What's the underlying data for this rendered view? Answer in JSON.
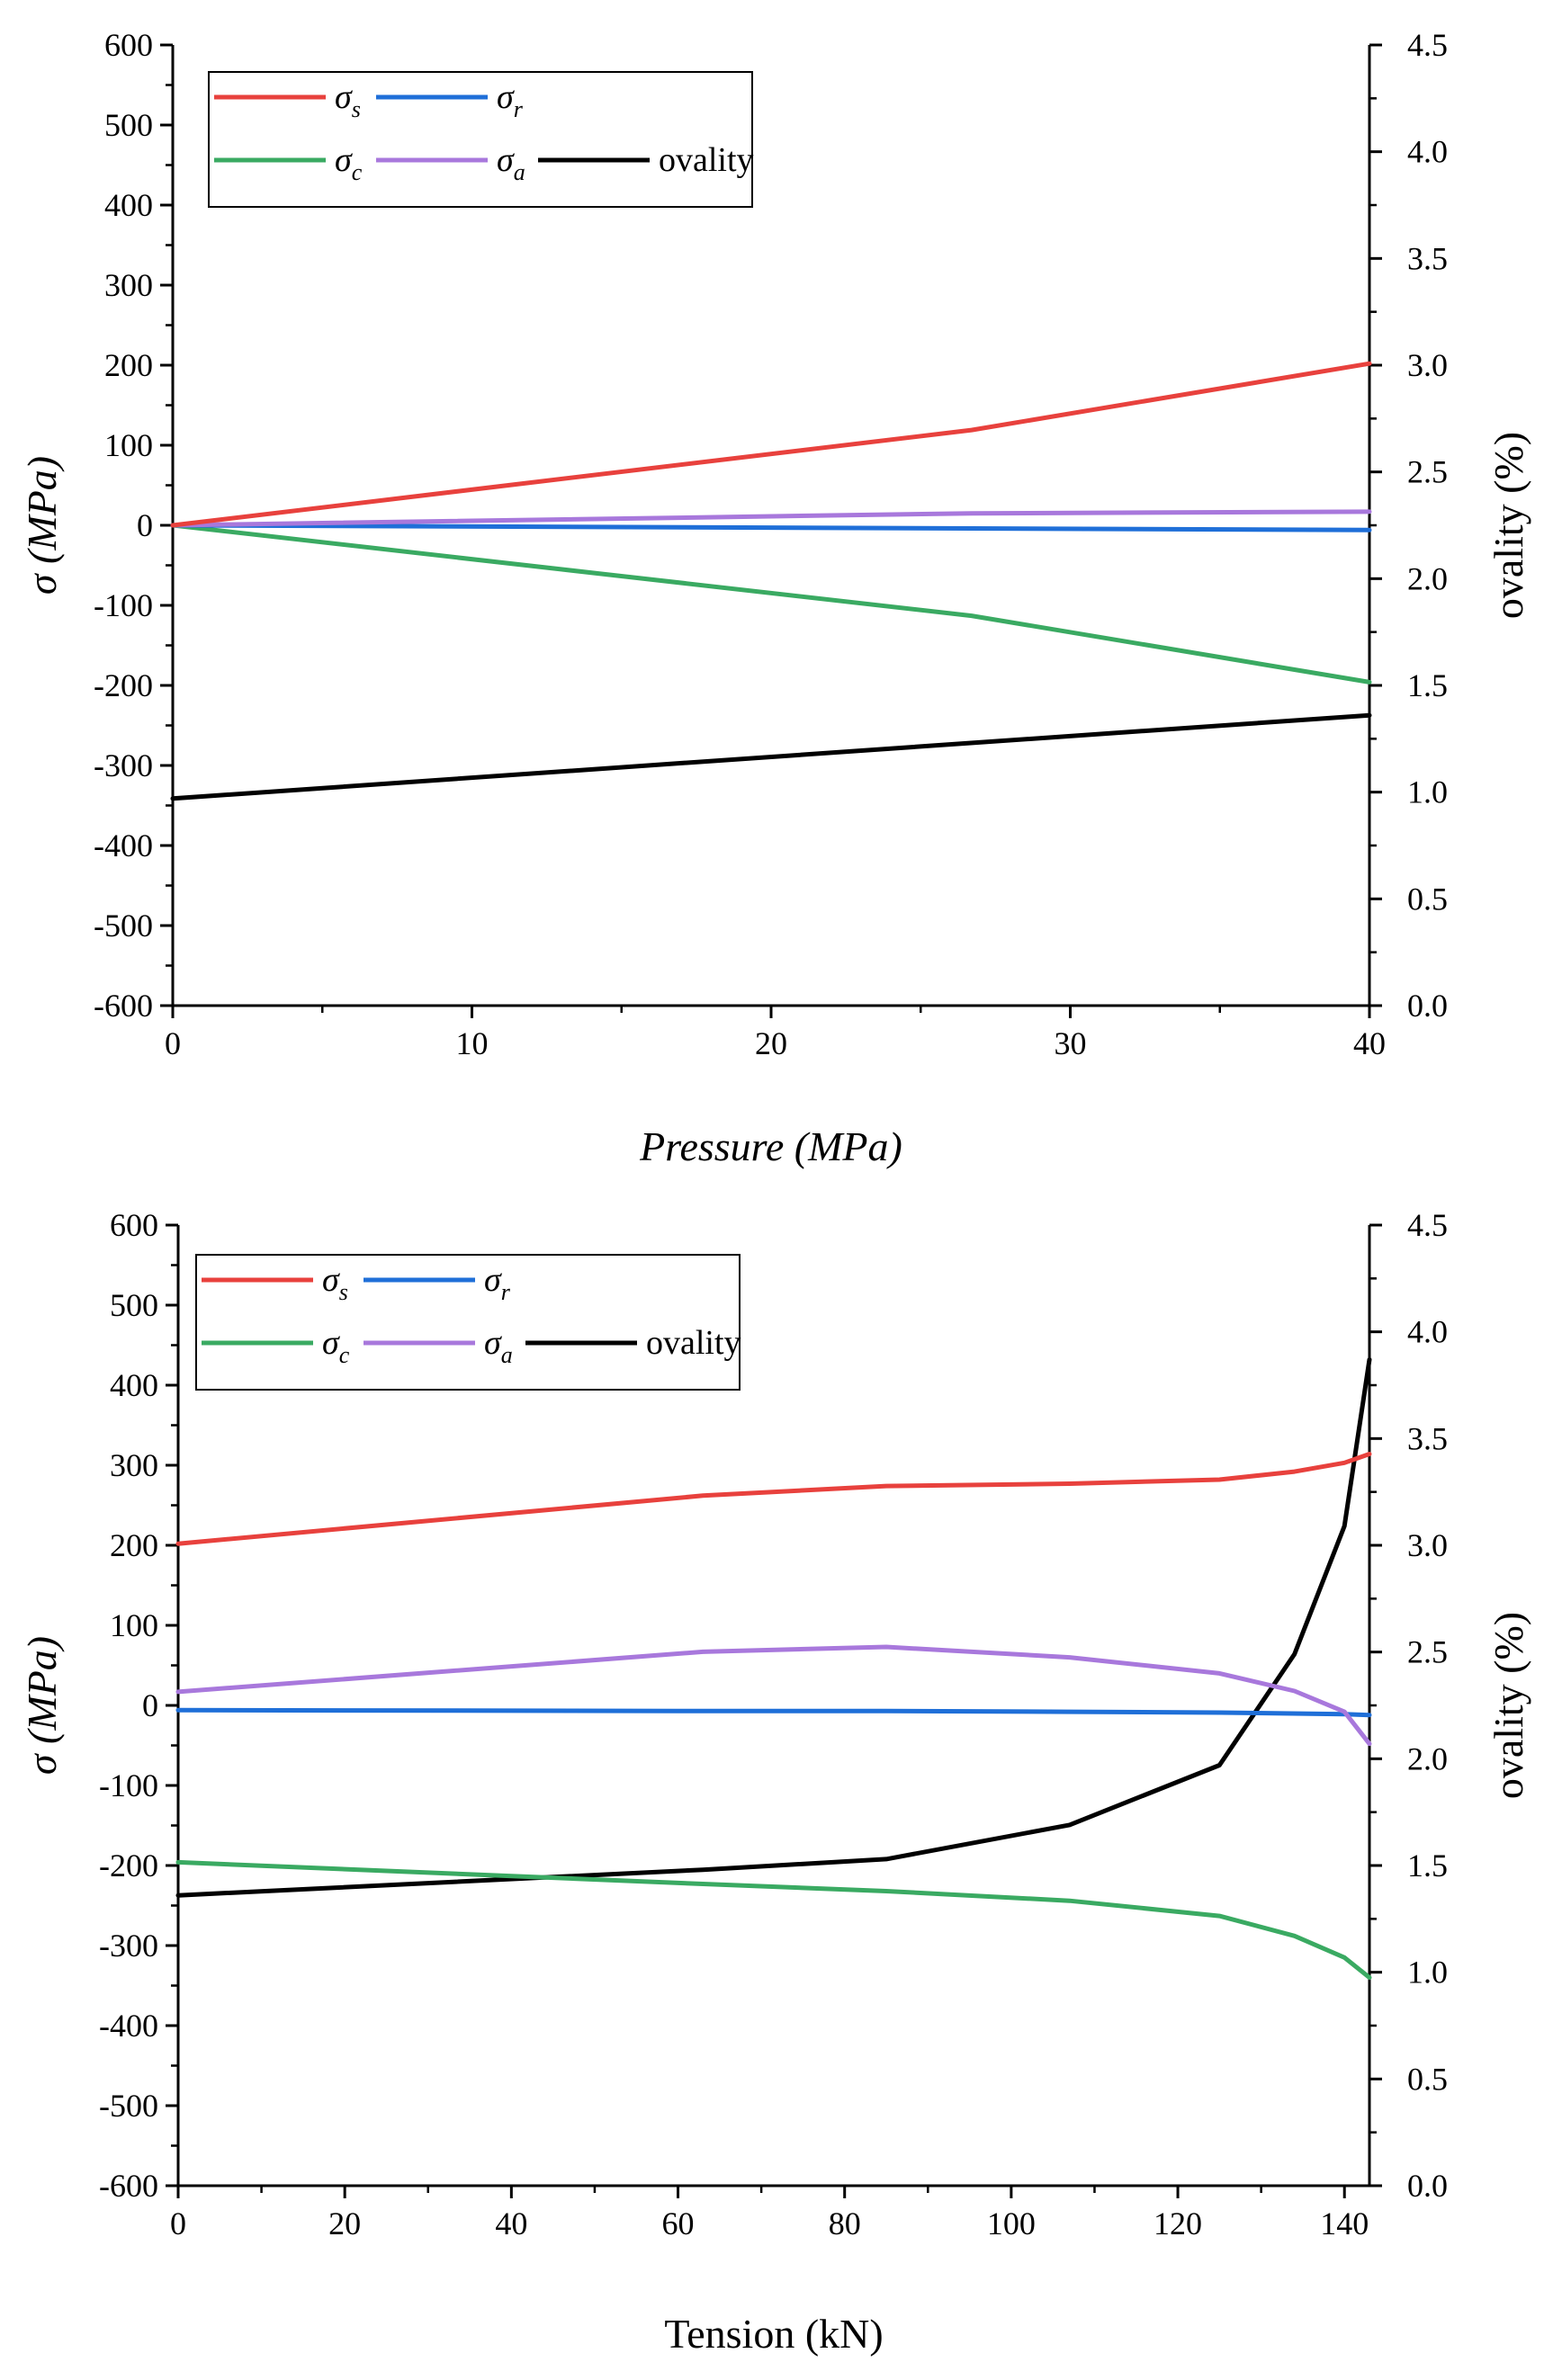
{
  "chart_data": [
    {
      "type": "line",
      "title": "",
      "xlabel": "Pressure (MPa)",
      "xlabel_italic": true,
      "ylabel": "σ (MPa)",
      "ylabel_right": "ovality (%)",
      "xlim": [
        0,
        40
      ],
      "ylim": [
        -600,
        600
      ],
      "ylim_right": [
        0.0,
        4.5
      ],
      "xticks": [
        0,
        10,
        20,
        30,
        40
      ],
      "xtick_labels": [
        "0",
        "10",
        "20",
        "30",
        "40"
      ],
      "yticks": [
        600,
        500,
        400,
        300,
        200,
        100,
        0,
        -100,
        -200,
        -300,
        -400,
        -500,
        -600
      ],
      "ytick_labels": [
        "600",
        "500",
        "400",
        "300",
        "200",
        "100",
        "0",
        "-100",
        "-200",
        "-300",
        "-400",
        "-500",
        "-600"
      ],
      "yticks_right": [
        4.5,
        4.0,
        3.5,
        3.0,
        2.5,
        2.0,
        1.5,
        1.0,
        0.5,
        0.0
      ],
      "ytick_labels_right": [
        "4.5",
        "4.0",
        "3.5",
        "3.0",
        "2.5",
        "2.0",
        "1.5",
        "1.0",
        "0.5",
        "0.0"
      ],
      "grid": false,
      "legend": {
        "position": "top-left",
        "entries": [
          {
            "symbol": "σ",
            "sub": "s",
            "color": "#e8413d"
          },
          {
            "symbol": "σ",
            "sub": "r",
            "color": "#1f6fd8"
          },
          {
            "symbol": "σ",
            "sub": "c",
            "color": "#3aaa62"
          },
          {
            "symbol": "σ",
            "sub": "a",
            "color": "#a878dc"
          },
          {
            "label": "ovality",
            "color": "#000000"
          }
        ]
      },
      "series": [
        {
          "name": "σs",
          "axis": "left",
          "color": "#e8413d",
          "x": [
            0,
            26.7,
            40
          ],
          "y": [
            0,
            119,
            202
          ]
        },
        {
          "name": "σr",
          "axis": "left",
          "color": "#1f6fd8",
          "x": [
            0,
            40
          ],
          "y": [
            0,
            -6
          ]
        },
        {
          "name": "σc",
          "axis": "left",
          "color": "#3aaa62",
          "x": [
            0,
            26.7,
            40
          ],
          "y": [
            0,
            -113,
            -196
          ]
        },
        {
          "name": "σa",
          "axis": "left",
          "color": "#a878dc",
          "x": [
            0,
            26.7,
            40
          ],
          "y": [
            0,
            15,
            17
          ]
        },
        {
          "name": "ovality",
          "axis": "right",
          "color": "#000000",
          "x": [
            0,
            40
          ],
          "y": [
            0.97,
            1.36
          ]
        }
      ]
    },
    {
      "type": "line",
      "title": "",
      "xlabel": "Tension (kN)",
      "xlabel_italic": false,
      "ylabel": "σ (MPa)",
      "ylabel_right": "ovality (%)",
      "xlim": [
        0,
        143
      ],
      "ylim": [
        -600,
        600
      ],
      "ylim_right": [
        0.0,
        4.5
      ],
      "xticks": [
        0,
        20,
        40,
        60,
        80,
        100,
        120,
        140
      ],
      "xtick_labels": [
        "0",
        "20",
        "40",
        "60",
        "80",
        "100",
        "120",
        "140"
      ],
      "yticks": [
        600,
        500,
        400,
        300,
        200,
        100,
        0,
        -100,
        -200,
        -300,
        -400,
        -500,
        -600
      ],
      "ytick_labels": [
        "600",
        "500",
        "400",
        "300",
        "200",
        "100",
        "0",
        "-100",
        "-200",
        "-300",
        "-400",
        "-500",
        "-600"
      ],
      "yticks_right": [
        4.5,
        4.0,
        3.5,
        3.0,
        2.5,
        2.0,
        1.5,
        1.0,
        0.5,
        0.0
      ],
      "ytick_labels_right": [
        "4.5",
        "4.0",
        "3.5",
        "3.0",
        "2.5",
        "2.0",
        "1.5",
        "1.0",
        "0.5",
        "0.0"
      ],
      "grid": false,
      "legend": {
        "position": "top-left",
        "entries": [
          {
            "symbol": "σ",
            "sub": "s",
            "color": "#e8413d"
          },
          {
            "symbol": "σ",
            "sub": "r",
            "color": "#1f6fd8"
          },
          {
            "symbol": "σ",
            "sub": "c",
            "color": "#3aaa62"
          },
          {
            "symbol": "σ",
            "sub": "a",
            "color": "#a878dc"
          },
          {
            "label": "ovality",
            "color": "#000000"
          }
        ]
      },
      "series": [
        {
          "name": "σs",
          "axis": "left",
          "color": "#e8413d",
          "x": [
            0,
            63,
            85,
            107,
            125,
            134,
            140,
            143
          ],
          "y": [
            202,
            262,
            274,
            277,
            282,
            292,
            303,
            314
          ]
        },
        {
          "name": "σr",
          "axis": "left",
          "color": "#1f6fd8",
          "x": [
            0,
            60,
            85,
            107,
            125,
            140,
            143
          ],
          "y": [
            -6,
            -7,
            -7,
            -8,
            -9,
            -11,
            -12
          ]
        },
        {
          "name": "σc",
          "axis": "left",
          "color": "#3aaa62",
          "x": [
            0,
            63,
            85,
            107,
            125,
            134,
            140,
            143
          ],
          "y": [
            -196,
            -223,
            -232,
            -244,
            -263,
            -288,
            -315,
            -340
          ]
        },
        {
          "name": "σa",
          "axis": "left",
          "color": "#a878dc",
          "x": [
            0,
            63,
            85,
            107,
            125,
            134,
            140,
            143
          ],
          "y": [
            17,
            67,
            73,
            60,
            40,
            18,
            -8,
            -48
          ]
        },
        {
          "name": "ovality",
          "axis": "right",
          "color": "#000000",
          "x": [
            0,
            63,
            85,
            107,
            125,
            134,
            140,
            143
          ],
          "y": [
            1.36,
            1.48,
            1.53,
            1.69,
            1.97,
            2.49,
            3.09,
            3.87
          ]
        }
      ]
    }
  ]
}
